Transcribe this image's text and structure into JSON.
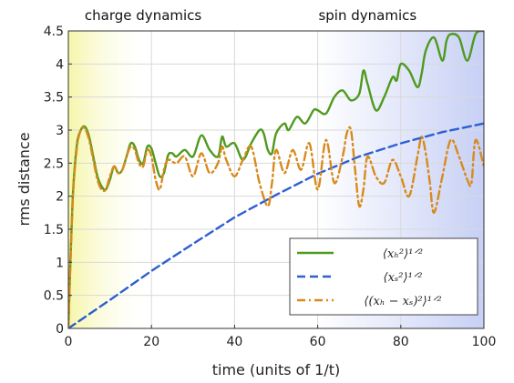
{
  "chart_data": {
    "type": "line",
    "title": "",
    "xlabel": "time (units of 1/t)",
    "ylabel": "rms distance",
    "xlim": [
      0,
      100
    ],
    "ylim": [
      0,
      4.5
    ],
    "xticks": [
      0,
      20,
      40,
      60,
      80,
      100
    ],
    "yticks": [
      0,
      0.5,
      1,
      1.5,
      2,
      2.5,
      3,
      3.5,
      4,
      4.5
    ],
    "grid": true,
    "legend_position": "bottom-right",
    "annotations": [
      {
        "text": "charge dynamics",
        "x": 18
      },
      {
        "text": "spin dynamics",
        "x": 72
      }
    ],
    "background_gradient": {
      "left_color": "#f5f6a8",
      "right_color": "#c7d0f5"
    },
    "series": [
      {
        "name": "⟨x_h²⟩^{1/2}",
        "label_display": "⟨xₕ²⟩¹ᐟ²",
        "color": "#4f9a1e",
        "style": "solid",
        "x": [
          0,
          1,
          2,
          3,
          4,
          5,
          6,
          7,
          8,
          9,
          10,
          11,
          12,
          13,
          14,
          15,
          16,
          17,
          18,
          19,
          20,
          21,
          22,
          23,
          24,
          25,
          26,
          28,
          30,
          32,
          34,
          36,
          37,
          38,
          40,
          42,
          44,
          46,
          47,
          48,
          49,
          50,
          52,
          53,
          55,
          57,
          59,
          60,
          62,
          64,
          66,
          68,
          70,
          71,
          72,
          74,
          76,
          78,
          79,
          80,
          82,
          84,
          85,
          86,
          88,
          90,
          91,
          92,
          94,
          96,
          98,
          100
        ],
        "y": [
          0,
          1.9,
          2.75,
          3.0,
          3.05,
          2.9,
          2.6,
          2.3,
          2.15,
          2.1,
          2.25,
          2.45,
          2.35,
          2.4,
          2.6,
          2.8,
          2.75,
          2.55,
          2.5,
          2.75,
          2.72,
          2.5,
          2.3,
          2.35,
          2.62,
          2.65,
          2.6,
          2.7,
          2.6,
          2.92,
          2.7,
          2.6,
          2.9,
          2.75,
          2.8,
          2.55,
          2.8,
          3.0,
          2.95,
          2.7,
          2.65,
          2.95,
          3.1,
          3.0,
          3.2,
          3.1,
          3.3,
          3.3,
          3.25,
          3.5,
          3.6,
          3.45,
          3.55,
          3.9,
          3.7,
          3.3,
          3.5,
          3.8,
          3.75,
          4.0,
          3.9,
          3.65,
          3.85,
          4.2,
          4.4,
          4.05,
          4.35,
          4.45,
          4.4,
          4.05,
          4.45,
          4.5
        ]
      },
      {
        "name": "⟨x_s²⟩^{1/2}",
        "label_display": "⟨xₛ²⟩¹ᐟ²",
        "color": "#2e5fd1",
        "style": "dashed",
        "x": [
          0,
          10,
          20,
          30,
          40,
          50,
          60,
          70,
          80,
          90,
          100
        ],
        "y": [
          0,
          0.43,
          0.87,
          1.28,
          1.68,
          2.02,
          2.34,
          2.6,
          2.8,
          2.97,
          3.1
        ]
      },
      {
        "name": "⟨(x_h − x_s)²⟩^{1/2}",
        "label_display": "⟨(xₕ − xₛ)²⟩¹ᐟ²",
        "color": "#d98a1b",
        "style": "dashdot",
        "x": [
          0,
          1,
          2,
          3,
          4,
          5,
          6,
          7,
          8,
          9,
          10,
          11,
          12,
          13,
          14,
          15,
          16,
          17,
          18,
          19,
          20,
          21,
          22,
          23,
          24,
          26,
          28,
          30,
          32,
          34,
          36,
          37,
          38,
          40,
          42,
          44,
          46,
          48,
          49,
          50,
          52,
          54,
          56,
          58,
          60,
          62,
          64,
          66,
          67,
          68,
          69,
          70,
          71,
          72,
          74,
          76,
          78,
          80,
          82,
          84,
          85,
          86,
          87,
          88,
          90,
          92,
          94,
          96,
          97,
          98,
          100
        ],
        "y": [
          0,
          1.85,
          2.7,
          3.0,
          3.02,
          2.85,
          2.55,
          2.25,
          2.1,
          2.1,
          2.3,
          2.45,
          2.35,
          2.4,
          2.6,
          2.75,
          2.7,
          2.5,
          2.45,
          2.7,
          2.6,
          2.25,
          2.1,
          2.4,
          2.55,
          2.5,
          2.6,
          2.3,
          2.65,
          2.35,
          2.5,
          2.75,
          2.55,
          2.3,
          2.55,
          2.75,
          2.2,
          1.85,
          2.2,
          2.7,
          2.35,
          2.7,
          2.4,
          2.8,
          2.1,
          2.85,
          2.2,
          2.6,
          2.95,
          3.0,
          2.4,
          1.85,
          2.1,
          2.6,
          2.3,
          2.2,
          2.55,
          2.3,
          2.0,
          2.6,
          2.9,
          2.65,
          2.2,
          1.75,
          2.3,
          2.85,
          2.6,
          2.25,
          2.2,
          2.85,
          2.45
        ]
      }
    ]
  }
}
